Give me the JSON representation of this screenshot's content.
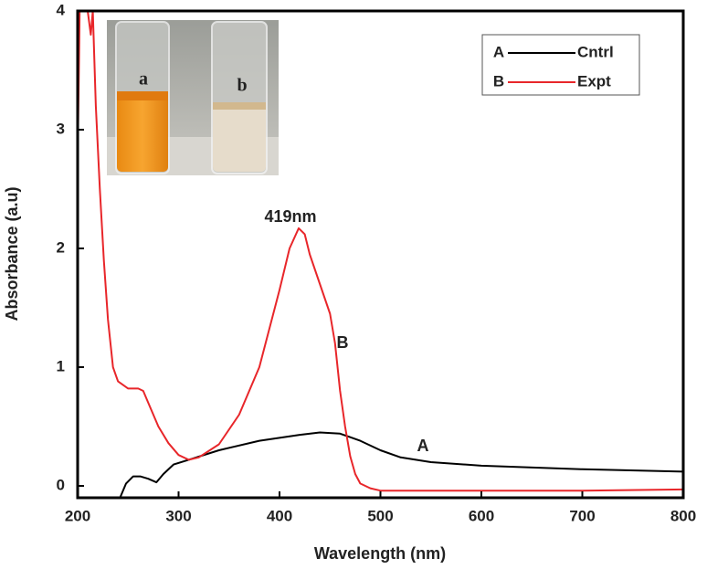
{
  "chart_data": {
    "type": "line",
    "xlabel": "Wavelength (nm)",
    "ylabel": "Absorbance (a.u)",
    "xlim": [
      200,
      800
    ],
    "ylim": [
      -0.1,
      4
    ],
    "xticks": [
      200,
      300,
      400,
      500,
      600,
      700,
      800
    ],
    "yticks": [
      0,
      1,
      2,
      3,
      4
    ],
    "grid": false,
    "series": [
      {
        "name": "Cntrl",
        "label": "A",
        "color": "#000000",
        "x": [
          242,
          248,
          255,
          262,
          270,
          278,
          285,
          295,
          310,
          340,
          380,
          420,
          440,
          460,
          480,
          500,
          520,
          550,
          600,
          700,
          800
        ],
        "values": [
          -0.1,
          0.02,
          0.08,
          0.08,
          0.06,
          0.03,
          0.1,
          0.18,
          0.22,
          0.3,
          0.38,
          0.43,
          0.45,
          0.44,
          0.38,
          0.3,
          0.24,
          0.2,
          0.17,
          0.14,
          0.12
        ]
      },
      {
        "name": "Expt",
        "label": "B",
        "color": "#e8262a",
        "x": [
          200,
          202,
          210,
          213,
          215,
          218,
          222,
          226,
          230,
          235,
          240,
          250,
          260,
          265,
          270,
          280,
          290,
          300,
          310,
          320,
          340,
          360,
          380,
          400,
          410,
          419,
          425,
          430,
          440,
          450,
          455,
          460,
          465,
          470,
          475,
          480,
          490,
          500,
          600,
          700,
          800
        ],
        "values": [
          2.75,
          4.0,
          4.0,
          3.8,
          4.0,
          3.2,
          2.5,
          1.9,
          1.4,
          1.0,
          0.88,
          0.82,
          0.82,
          0.8,
          0.7,
          0.5,
          0.36,
          0.26,
          0.22,
          0.24,
          0.35,
          0.6,
          1.0,
          1.65,
          2.0,
          2.17,
          2.12,
          1.95,
          1.7,
          1.45,
          1.2,
          0.8,
          0.5,
          0.25,
          0.1,
          0.02,
          -0.02,
          -0.04,
          -0.04,
          -0.04,
          -0.03
        ]
      }
    ],
    "annotations": [
      "419nm",
      "B",
      "A"
    ],
    "inset": {
      "labels": [
        "a",
        "b"
      ]
    }
  }
}
